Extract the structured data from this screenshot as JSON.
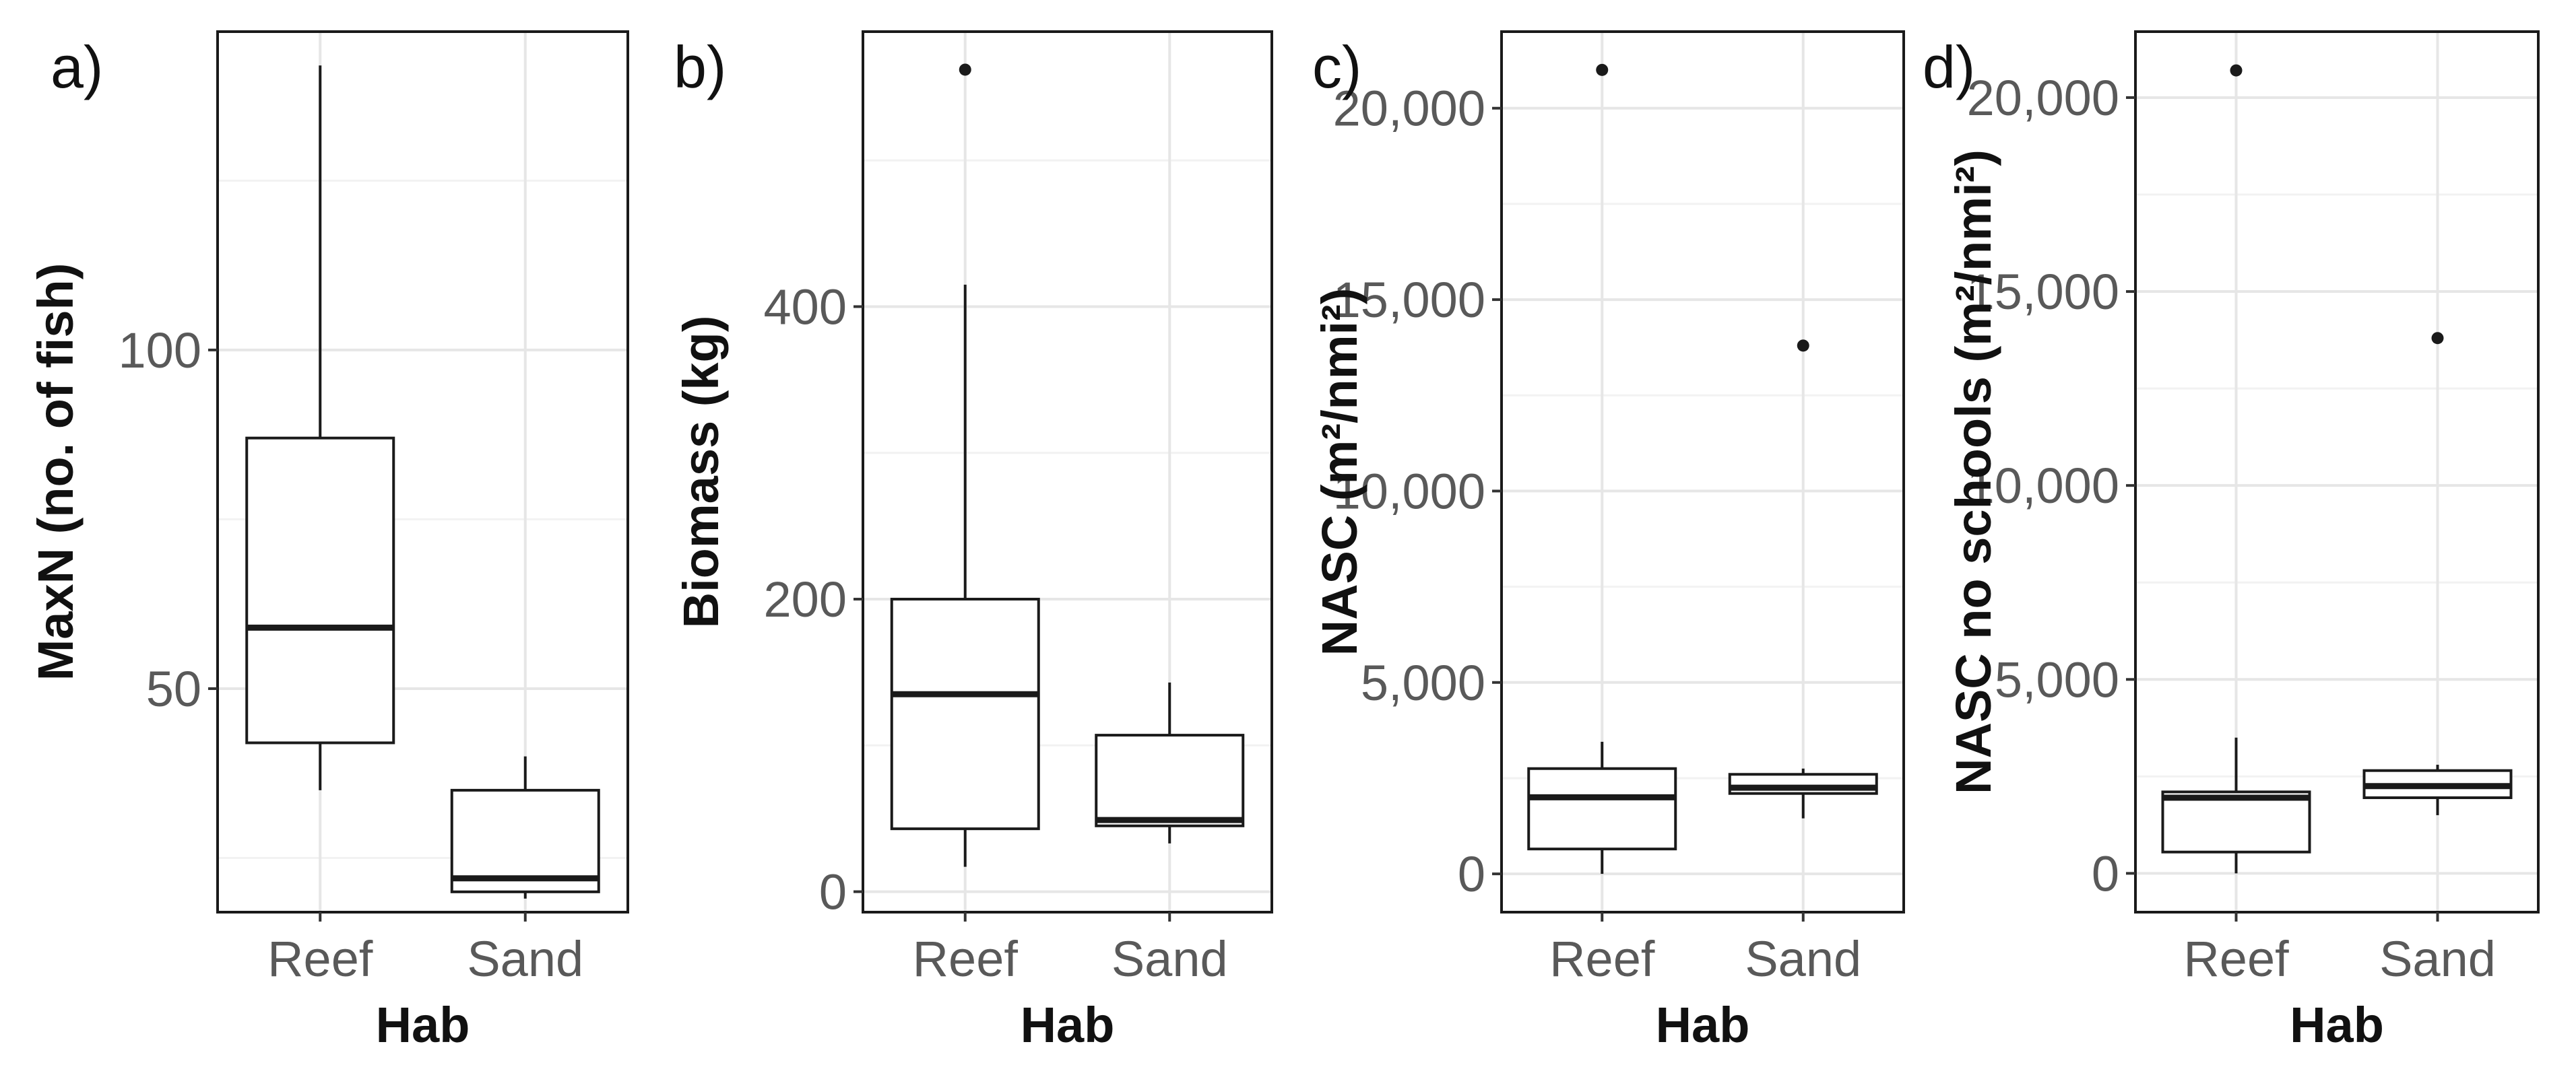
{
  "chart_data": [
    {
      "type": "box",
      "panel_label": "a)",
      "xlabel": "Hab",
      "ylabel": "MaxN (no. of fish)",
      "categories": [
        "Reef",
        "Sand"
      ],
      "y_ticks": [
        50,
        100
      ],
      "y_tick_labels": [
        "50",
        "100"
      ],
      "ylim": [
        17,
        147
      ],
      "grid": true,
      "boxes": [
        {
          "category": "Reef",
          "whisker_low": 35,
          "q1": 42,
          "median": 59,
          "q3": 87,
          "whisker_high": 142,
          "outliers": []
        },
        {
          "category": "Sand",
          "whisker_low": 19,
          "q1": 20,
          "median": 22,
          "q3": 35,
          "whisker_high": 40,
          "outliers": []
        }
      ]
    },
    {
      "type": "box",
      "panel_label": "b)",
      "xlabel": "Hab",
      "ylabel": "Biomass (kg)",
      "categories": [
        "Reef",
        "Sand"
      ],
      "y_ticks": [
        0,
        200,
        400
      ],
      "y_tick_labels": [
        "0",
        "200",
        "400"
      ],
      "ylim": [
        -14,
        588
      ],
      "grid": true,
      "boxes": [
        {
          "category": "Reef",
          "whisker_low": 17,
          "q1": 43,
          "median": 135,
          "q3": 200,
          "whisker_high": 415,
          "outliers": [
            562
          ]
        },
        {
          "category": "Sand",
          "whisker_low": 33,
          "q1": 45,
          "median": 49,
          "q3": 107,
          "whisker_high": 143,
          "outliers": []
        }
      ]
    },
    {
      "type": "box",
      "panel_label": "c)",
      "xlabel": "Hab",
      "ylabel": "NASC (m²/nmi²)",
      "categories": [
        "Reef",
        "Sand"
      ],
      "y_ticks": [
        0,
        5000,
        10000,
        15000,
        20000
      ],
      "y_tick_labels": [
        "0",
        "5,000",
        "10,000",
        "15,000",
        "20,000"
      ],
      "ylim": [
        -1000,
        22000
      ],
      "grid": true,
      "boxes": [
        {
          "category": "Reef",
          "whisker_low": 0,
          "q1": 650,
          "median": 2000,
          "q3": 2750,
          "whisker_high": 3450,
          "outliers": [
            21000
          ]
        },
        {
          "category": "Sand",
          "whisker_low": 1450,
          "q1": 2100,
          "median": 2250,
          "q3": 2600,
          "whisker_high": 2750,
          "outliers": [
            13800
          ]
        }
      ]
    },
    {
      "type": "box",
      "panel_label": "d)",
      "xlabel": "Hab",
      "ylabel": "NASC no schools (m²/nmi²)",
      "categories": [
        "Reef",
        "Sand"
      ],
      "y_ticks": [
        0,
        5000,
        10000,
        15000,
        20000
      ],
      "y_tick_labels": [
        "0",
        "5,000",
        "10,000",
        "15,000",
        "20,000"
      ],
      "ylim": [
        -1000,
        21700
      ],
      "grid": true,
      "boxes": [
        {
          "category": "Reef",
          "whisker_low": 0,
          "q1": 550,
          "median": 1950,
          "q3": 2100,
          "whisker_high": 3500,
          "outliers": [
            20700
          ]
        },
        {
          "category": "Sand",
          "whisker_low": 1500,
          "q1": 1950,
          "median": 2250,
          "q3": 2650,
          "whisker_high": 2800,
          "outliers": [
            13800
          ]
        }
      ]
    }
  ],
  "colors": {
    "box_stroke": "#1a1a1a",
    "box_fill": "#ffffff",
    "grid_major": "#e6e6e6",
    "grid_minor": "#f2f2f2",
    "tick_text": "#595959",
    "title_text": "#111111",
    "outlier": "#1a1a1a"
  }
}
